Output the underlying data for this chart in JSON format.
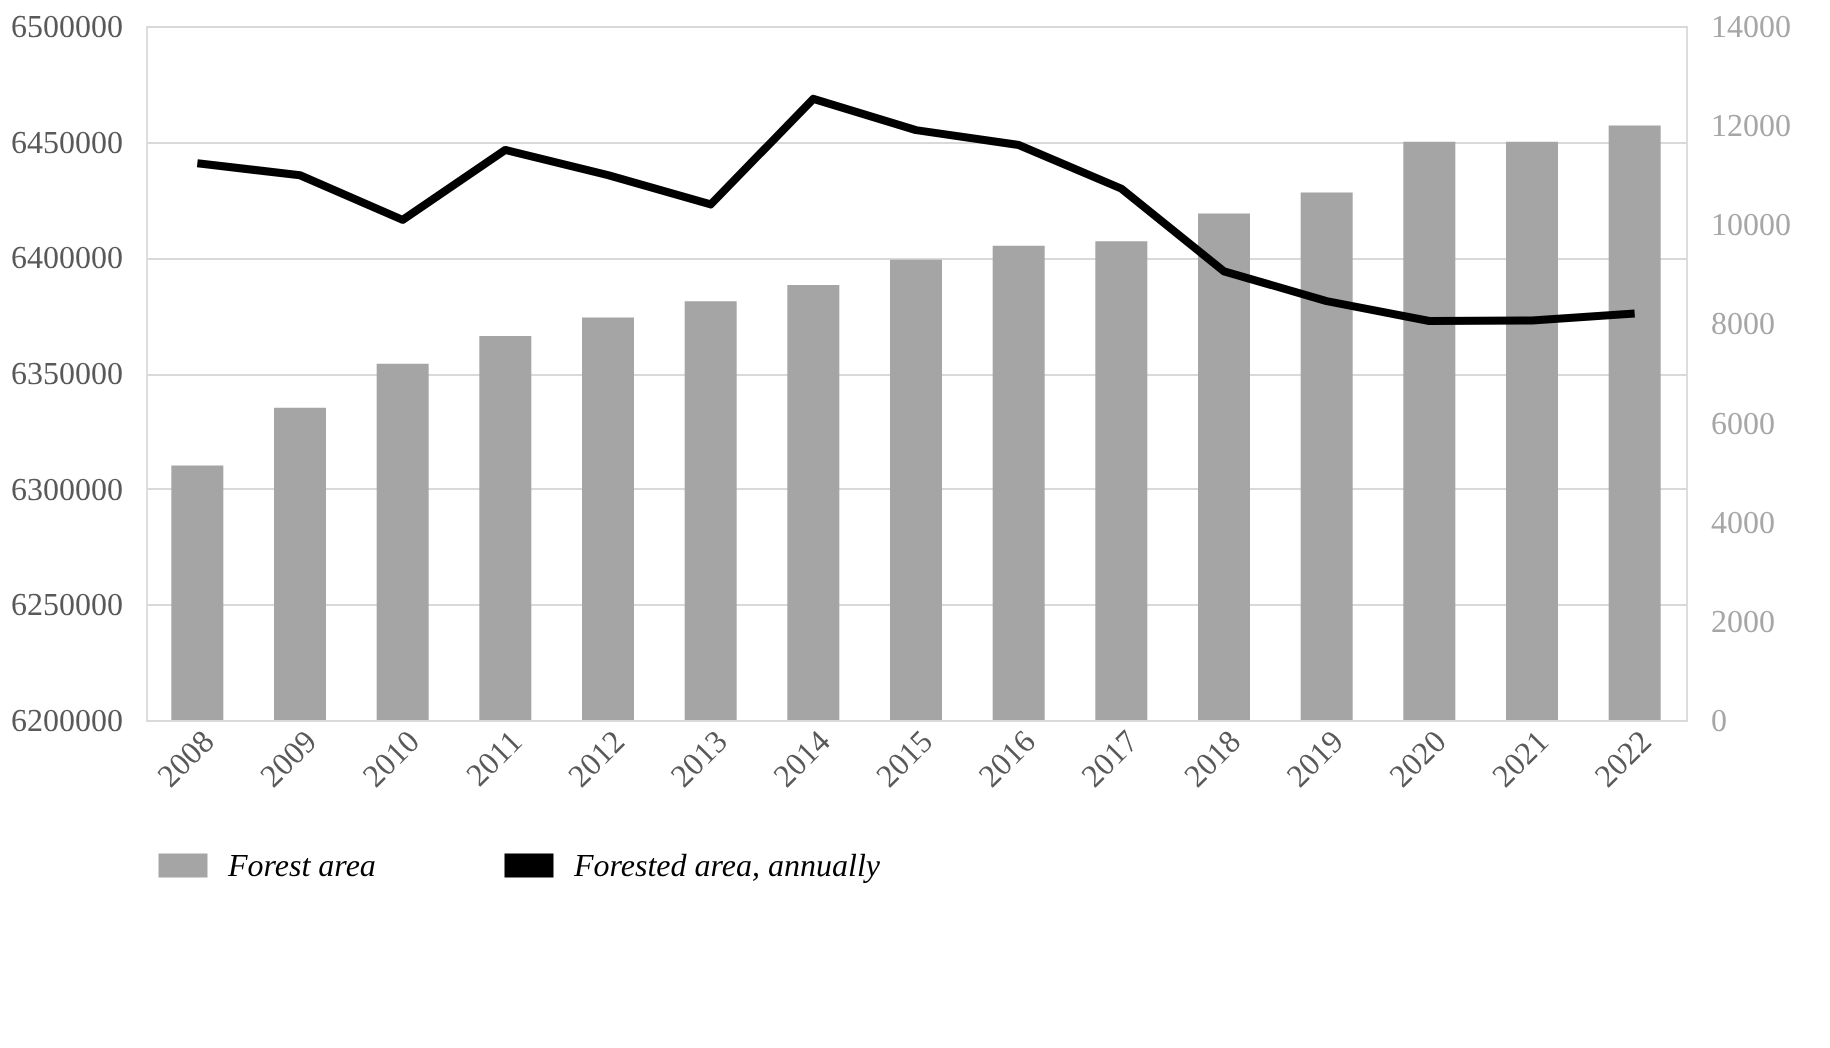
{
  "chart_data": {
    "type": "bar",
    "categories": [
      "2008",
      "2009",
      "2010",
      "2011",
      "2012",
      "2013",
      "2014",
      "2015",
      "2016",
      "2017",
      "2018",
      "2019",
      "2020",
      "2021",
      "2022"
    ],
    "series": [
      {
        "name": "Forest area",
        "color": "#a5a5a5",
        "values": [
          6310000,
          6335000,
          6354000,
          6366000,
          6374000,
          6381000,
          6388000,
          6399000,
          6405000,
          6407000,
          6419000,
          6428000,
          6450000,
          6450000,
          6457000
        ]
      },
      {
        "name": "Forested area, annually",
        "type": "line",
        "axis": "y2",
        "color": "#000000",
        "values": [
          11230,
          10990,
          10090,
          11500,
          10990,
          10400,
          12530,
          11900,
          11600,
          10720,
          9050,
          8450,
          8050,
          8060,
          8200
        ]
      }
    ],
    "ylim": [
      6200000,
      6500000
    ],
    "yticks": [
      6200000,
      6250000,
      6300000,
      6350000,
      6400000,
      6450000,
      6500000
    ],
    "y2lim": [
      0,
      14000
    ],
    "y2ticks": [
      0,
      2000,
      4000,
      6000,
      8000,
      10000,
      12000,
      14000
    ],
    "grid": "y",
    "legend": "bottom",
    "marker": "none",
    "line_style": "solid"
  }
}
